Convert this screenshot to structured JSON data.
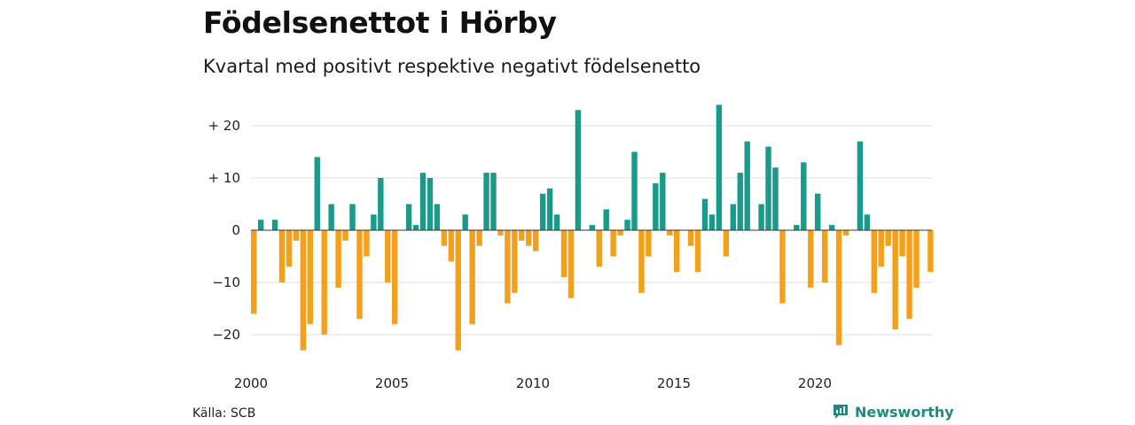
{
  "title": "Födelsenettot i Hörby",
  "subtitle": "Kvartal med positivt respektive negativt födelsenetto",
  "source": "Källa: SCB",
  "brand": "Newsworthy",
  "colors": {
    "positive": "#1a9a8a",
    "negative": "#f5a01a",
    "grid": "#dddddd",
    "brand": "#1f8b7e"
  },
  "chart_data": {
    "type": "bar",
    "x_start": "2000",
    "x_unit": "quarter",
    "ylim": [
      -25,
      25
    ],
    "y_ticks": [
      {
        "value": 20,
        "label": "+ 20"
      },
      {
        "value": 10,
        "label": "+ 10"
      },
      {
        "value": 0,
        "label": "0"
      },
      {
        "value": -10,
        "label": "−10"
      },
      {
        "value": -20,
        "label": "−20"
      }
    ],
    "x_ticks": [
      {
        "year": 2000,
        "label": "2000"
      },
      {
        "year": 2005,
        "label": "2005"
      },
      {
        "year": 2010,
        "label": "2010"
      },
      {
        "year": 2015,
        "label": "2015"
      },
      {
        "year": 2020,
        "label": "2020"
      }
    ],
    "grid": true,
    "values": [
      -16,
      2,
      0,
      2,
      -10,
      -7,
      -2,
      -23,
      -18,
      14,
      -20,
      5,
      -11,
      -2,
      5,
      -17,
      -5,
      3,
      10,
      -10,
      -18,
      0,
      5,
      1,
      11,
      10,
      5,
      -3,
      -6,
      -23,
      3,
      -18,
      -3,
      11,
      11,
      -1,
      -14,
      -12,
      -2,
      -3,
      -4,
      7,
      8,
      3,
      -9,
      -13,
      23,
      0,
      1,
      -7,
      4,
      -5,
      -1,
      2,
      15,
      -12,
      -5,
      9,
      11,
      -1,
      -8,
      0,
      -3,
      -8,
      6,
      3,
      24,
      -5,
      5,
      11,
      17,
      0,
      5,
      16,
      12,
      -14,
      0,
      1,
      13,
      -11,
      7,
      -10,
      1,
      -22,
      -1,
      0,
      17,
      3,
      -12,
      -7,
      -3,
      -19,
      -5,
      -17,
      -11,
      0,
      -8
    ]
  }
}
